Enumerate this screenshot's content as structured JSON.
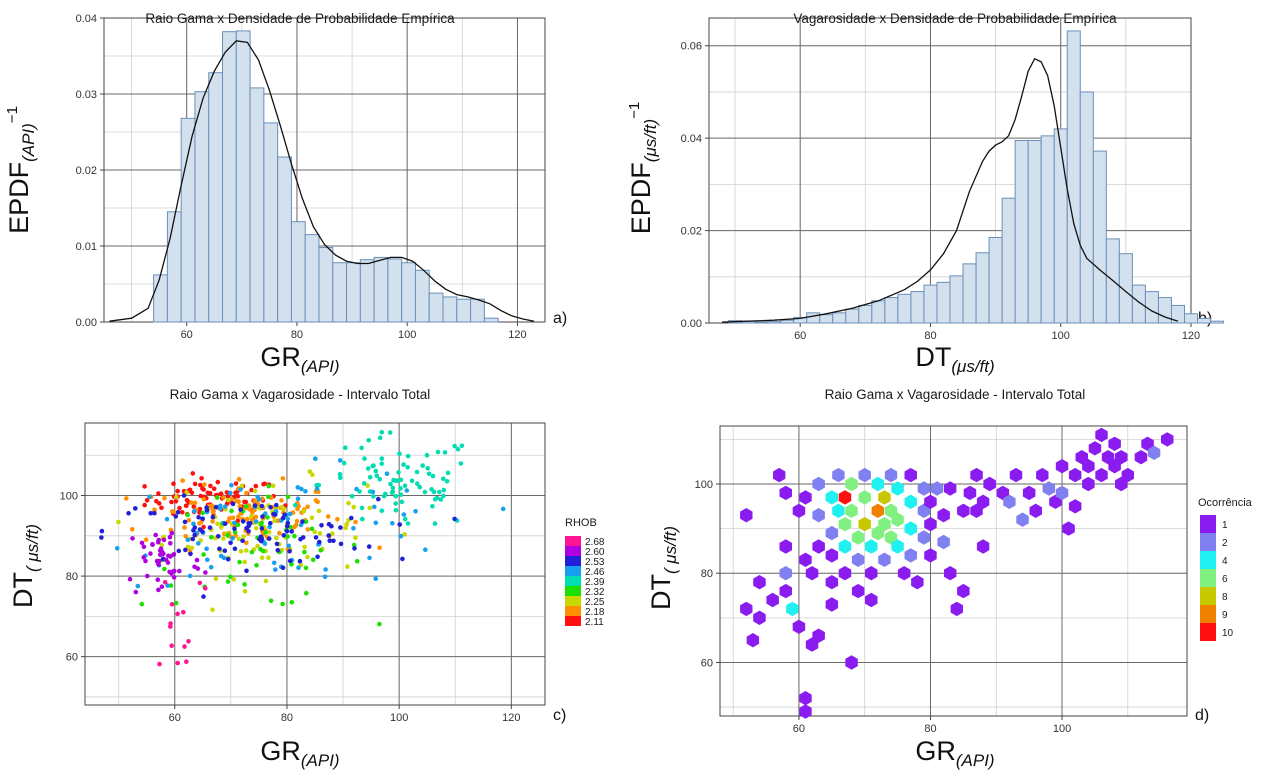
{
  "chart_data": [
    {
      "panel": "a)",
      "type": "bar",
      "title": "Raio Gama x Densidade de Probabilidade Empírica",
      "xlabel": {
        "main": "GR",
        "sub": "(API)"
      },
      "ylabel": {
        "main": "EPDF",
        "sub": "(API)",
        "sup": "−1"
      },
      "xlim": [
        45,
        125
      ],
      "ylim": [
        0,
        0.04
      ],
      "xticks": [
        60,
        80,
        100,
        120
      ],
      "yticks": [
        0.0,
        0.01,
        0.02,
        0.03,
        0.04
      ],
      "ytick_labels": [
        "0.00",
        "0.01",
        "0.02",
        "0.03",
        "0.04"
      ],
      "grid": true,
      "bins": {
        "start": 54,
        "width": 2.5,
        "values": [
          0.0062,
          0.0145,
          0.0268,
          0.0303,
          0.0328,
          0.0382,
          0.0383,
          0.0308,
          0.0262,
          0.0217,
          0.0132,
          0.0115,
          0.0098,
          0.0078,
          0.0078,
          0.0082,
          0.0085,
          0.0083,
          0.0078,
          0.0068,
          0.0038,
          0.0033,
          0.003,
          0.003,
          0.0005
        ]
      },
      "density": {
        "x": [
          46,
          50,
          53,
          55,
          57,
          59,
          61,
          63,
          65,
          67,
          69,
          71,
          73,
          75,
          77,
          79,
          81,
          83,
          85,
          87,
          89,
          91,
          93,
          95,
          97,
          99,
          101,
          103,
          105,
          107,
          109,
          111,
          113,
          115,
          117,
          119,
          121,
          123
        ],
        "y": [
          0.0001,
          0.0005,
          0.0018,
          0.0055,
          0.011,
          0.018,
          0.0245,
          0.0295,
          0.033,
          0.0355,
          0.037,
          0.0368,
          0.0345,
          0.0305,
          0.0258,
          0.0208,
          0.0162,
          0.0125,
          0.0102,
          0.0088,
          0.008,
          0.0077,
          0.0077,
          0.0081,
          0.0085,
          0.0085,
          0.008,
          0.0068,
          0.0054,
          0.0043,
          0.0036,
          0.0033,
          0.0029,
          0.0024,
          0.0015,
          0.0008,
          0.0004,
          0.0001
        ]
      }
    },
    {
      "panel": "b)",
      "type": "bar",
      "title": "Vagarosidade x Densidade de Probabilidade Empírica",
      "xlabel": {
        "main": "DT",
        "sub": "(μs/ft)"
      },
      "ylabel": {
        "main": "EPDF",
        "sub": "(μs/ft)",
        "sup": "−1"
      },
      "xlim": [
        46,
        120
      ],
      "ylim": [
        0,
        0.066
      ],
      "xticks": [
        60,
        80,
        100,
        120
      ],
      "yticks": [
        0.0,
        0.02,
        0.04,
        0.06
      ],
      "ytick_labels": [
        "0.00",
        "0.02",
        "0.04",
        "0.06"
      ],
      "grid": true,
      "bins": {
        "start": 49,
        "width": 2,
        "values": [
          0.0005,
          0.0004,
          0.0002,
          0.0003,
          0.0006,
          0.0012,
          0.0022,
          0.0018,
          0.0022,
          0.003,
          0.0038,
          0.0048,
          0.0055,
          0.0062,
          0.0068,
          0.0082,
          0.0088,
          0.0102,
          0.0128,
          0.0152,
          0.0185,
          0.027,
          0.0395,
          0.0395,
          0.0405,
          0.042,
          0.0632,
          0.05,
          0.0372,
          0.0182,
          0.015,
          0.0082,
          0.0068,
          0.0055,
          0.0038,
          0.002,
          0.001,
          0.0004
        ]
      },
      "density": {
        "x": [
          48,
          52,
          56,
          60,
          64,
          68,
          72,
          76,
          78,
          80,
          82,
          84,
          86,
          88,
          89,
          90,
          91,
          92,
          93,
          94,
          95,
          96,
          97,
          98,
          99,
          100,
          101,
          102,
          103,
          104,
          106,
          108,
          110,
          112,
          114,
          116,
          118
        ],
        "y": [
          0.0002,
          0.0004,
          0.0006,
          0.001,
          0.002,
          0.0032,
          0.0048,
          0.0072,
          0.009,
          0.0115,
          0.015,
          0.02,
          0.0285,
          0.035,
          0.0372,
          0.0385,
          0.0392,
          0.0405,
          0.044,
          0.049,
          0.0545,
          0.0572,
          0.0565,
          0.0535,
          0.047,
          0.038,
          0.029,
          0.0215,
          0.0168,
          0.014,
          0.0115,
          0.0092,
          0.0068,
          0.0045,
          0.0026,
          0.0013,
          0.0004
        ]
      }
    },
    {
      "panel": "c)",
      "type": "scatter",
      "title": "Raio Gama x Vagarosidade - Intervalo Total",
      "xlabel": {
        "main": "GR",
        "sub": "(API)"
      },
      "ylabel": {
        "main": "DT",
        "sub": "( μs/ft)"
      },
      "xlim": [
        44,
        126
      ],
      "ylim": [
        48,
        118
      ],
      "xticks": [
        60,
        80,
        100,
        120
      ],
      "yticks": [
        60,
        80,
        100
      ],
      "grid": true,
      "color_legend": {
        "title": "RHOB",
        "placement": "right",
        "entries": [
          {
            "label": "2.68",
            "color": "#ff1493"
          },
          {
            "label": "2.60",
            "color": "#b000e0"
          },
          {
            "label": "2.53",
            "color": "#2020d8"
          },
          {
            "label": "2.46",
            "color": "#18a0f0"
          },
          {
            "label": "2.39",
            "color": "#00ddb0"
          },
          {
            "label": "2.32",
            "color": "#1ee000"
          },
          {
            "label": "2.25",
            "color": "#c8d800"
          },
          {
            "label": "2.18",
            "color": "#ff9000"
          },
          {
            "label": "2.11",
            "color": "#ff1010"
          }
        ]
      },
      "clusters": [
        {
          "rhob": "2.11",
          "color": "#ff1010",
          "n": 85,
          "cx": 67,
          "sx": 6,
          "cy": 99,
          "sy": 2.6
        },
        {
          "rhob": "2.18",
          "color": "#ff9000",
          "n": 120,
          "cx": 72,
          "sx": 9,
          "cy": 95,
          "sy": 4
        },
        {
          "rhob": "2.25",
          "color": "#c8d800",
          "n": 85,
          "cx": 76,
          "sx": 9,
          "cy": 92,
          "sy": 6
        },
        {
          "rhob": "2.32",
          "color": "#1ee000",
          "n": 55,
          "cx": 74,
          "sx": 10,
          "cy": 86,
          "sy": 7
        },
        {
          "rhob": "2.39",
          "color": "#00ddb0",
          "n": 85,
          "cx": 100,
          "sx": 7,
          "cy": 103,
          "sy": 6
        },
        {
          "rhob": "2.46",
          "color": "#18a0f0",
          "n": 80,
          "cx": 80,
          "sx": 16,
          "cy": 92,
          "sy": 7
        },
        {
          "rhob": "2.53",
          "color": "#2020d8",
          "n": 95,
          "cx": 72,
          "sx": 12,
          "cy": 91,
          "sy": 4
        },
        {
          "rhob": "2.60",
          "color": "#b000e0",
          "n": 45,
          "cx": 58,
          "sx": 3.5,
          "cy": 84,
          "sy": 5
        },
        {
          "rhob": "2.68",
          "color": "#ff1493",
          "n": 15,
          "cx": 61,
          "sx": 3,
          "cy": 70,
          "sy": 9
        }
      ]
    },
    {
      "panel": "d)",
      "type": "heatmap",
      "title": "Raio Gama x Vagarosidade - Intervalo Total",
      "xlabel": {
        "main": "GR",
        "sub": "(API)"
      },
      "ylabel": {
        "main": "DT",
        "sub": "( μs/ft)"
      },
      "xlim": [
        48,
        119
      ],
      "ylim": [
        48,
        113
      ],
      "xticks": [
        60,
        80,
        100
      ],
      "yticks": [
        60,
        80,
        100
      ],
      "grid": true,
      "color_legend": {
        "title": "Ocorrência",
        "placement": "right",
        "entries": [
          {
            "label": "1",
            "color": "#8b1cf0"
          },
          {
            "label": "2",
            "color": "#8080f0"
          },
          {
            "label": "4",
            "color": "#20f0f0"
          },
          {
            "label": "6",
            "color": "#80f080"
          },
          {
            "label": "8",
            "color": "#c8c800"
          },
          {
            "label": "9",
            "color": "#f08000"
          },
          {
            "label": "10",
            "color": "#ff1010"
          }
        ]
      },
      "hex_bins": [
        [
          52,
          93,
          1
        ],
        [
          52,
          72,
          1
        ],
        [
          54,
          78,
          1
        ],
        [
          54,
          70,
          1
        ],
        [
          53,
          65,
          1
        ],
        [
          56,
          74,
          1
        ],
        [
          57,
          102,
          1
        ],
        [
          58,
          98,
          1
        ],
        [
          58,
          80,
          2
        ],
        [
          58,
          76,
          1
        ],
        [
          59,
          72,
          4
        ],
        [
          60,
          68,
          1
        ],
        [
          61,
          52,
          1
        ],
        [
          61,
          49,
          1
        ],
        [
          62,
          64,
          1
        ],
        [
          63,
          66,
          1
        ],
        [
          62,
          80,
          1
        ],
        [
          61,
          83,
          1
        ],
        [
          58,
          86,
          1
        ],
        [
          60,
          94,
          1
        ],
        [
          61,
          97,
          1
        ],
        [
          63,
          93,
          2
        ],
        [
          63,
          86,
          1
        ],
        [
          63,
          100,
          2
        ],
        [
          65,
          97,
          4
        ],
        [
          65,
          89,
          2
        ],
        [
          65,
          84,
          1
        ],
        [
          65,
          78,
          1
        ],
        [
          65,
          73,
          1
        ],
        [
          66,
          102,
          2
        ],
        [
          66,
          94,
          4
        ],
        [
          67,
          97,
          10
        ],
        [
          67,
          91,
          6
        ],
        [
          67,
          86,
          4
        ],
        [
          67,
          80,
          1
        ],
        [
          68,
          60,
          1
        ],
        [
          68,
          100,
          6
        ],
        [
          68,
          94,
          6
        ],
        [
          69,
          88,
          6
        ],
        [
          69,
          83,
          2
        ],
        [
          69,
          76,
          1
        ],
        [
          70,
          102,
          2
        ],
        [
          70,
          97,
          6
        ],
        [
          70,
          91,
          8
        ],
        [
          71,
          86,
          4
        ],
        [
          71,
          80,
          1
        ],
        [
          71,
          74,
          1
        ],
        [
          72,
          100,
          4
        ],
        [
          72,
          94,
          9
        ],
        [
          72,
          89,
          6
        ],
        [
          73,
          97,
          8
        ],
        [
          73,
          91,
          6
        ],
        [
          73,
          83,
          2
        ],
        [
          74,
          102,
          2
        ],
        [
          74,
          94,
          6
        ],
        [
          74,
          88,
          6
        ],
        [
          75,
          99,
          4
        ],
        [
          75,
          92,
          6
        ],
        [
          75,
          86,
          4
        ],
        [
          76,
          80,
          1
        ],
        [
          77,
          102,
          1
        ],
        [
          77,
          96,
          4
        ],
        [
          77,
          90,
          4
        ],
        [
          77,
          84,
          2
        ],
        [
          78,
          78,
          1
        ],
        [
          79,
          99,
          2
        ],
        [
          79,
          94,
          2
        ],
        [
          79,
          88,
          2
        ],
        [
          80,
          96,
          1
        ],
        [
          80,
          91,
          1
        ],
        [
          80,
          84,
          1
        ],
        [
          81,
          99,
          2
        ],
        [
          82,
          93,
          1
        ],
        [
          82,
          87,
          2
        ],
        [
          83,
          80,
          1
        ],
        [
          83,
          99,
          1
        ],
        [
          85,
          94,
          1
        ],
        [
          85,
          76,
          1
        ],
        [
          84,
          72,
          1
        ],
        [
          86,
          98,
          1
        ],
        [
          87,
          94,
          1
        ],
        [
          87,
          102,
          1
        ],
        [
          88,
          86,
          1
        ],
        [
          88,
          96,
          1
        ],
        [
          89,
          100,
          1
        ],
        [
          91,
          98,
          1
        ],
        [
          92,
          96,
          2
        ],
        [
          93,
          102,
          1
        ],
        [
          94,
          92,
          2
        ],
        [
          95,
          98,
          1
        ],
        [
          96,
          94,
          1
        ],
        [
          97,
          102,
          1
        ],
        [
          98,
          99,
          2
        ],
        [
          99,
          96,
          1
        ],
        [
          100,
          104,
          1
        ],
        [
          100,
          98,
          2
        ],
        [
          101,
          90,
          1
        ],
        [
          102,
          102,
          1
        ],
        [
          102,
          95,
          1
        ],
        [
          103,
          106,
          1
        ],
        [
          104,
          100,
          1
        ],
        [
          104,
          104,
          1
        ],
        [
          105,
          108,
          1
        ],
        [
          106,
          102,
          1
        ],
        [
          106,
          111,
          1
        ],
        [
          107,
          106,
          1
        ],
        [
          108,
          104,
          1
        ],
        [
          108,
          109,
          1
        ],
        [
          109,
          100,
          1
        ],
        [
          109,
          106,
          1
        ],
        [
          110,
          102,
          1
        ],
        [
          112,
          106,
          1
        ],
        [
          113,
          109,
          1
        ],
        [
          114,
          107,
          2
        ],
        [
          116,
          110,
          1
        ]
      ]
    }
  ]
}
